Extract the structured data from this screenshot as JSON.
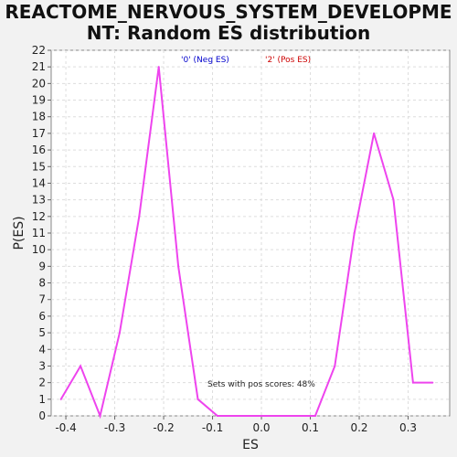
{
  "chart_data": {
    "type": "line",
    "title_lines": [
      "REACTOME_NERVOUS_SYSTEM_DEVELOPME",
      "NT: Random ES distribution"
    ],
    "xlabel": "ES",
    "ylabel": "P(ES)",
    "xlim": [
      -0.43,
      0.385
    ],
    "ylim": [
      0,
      22
    ],
    "xticks": [
      -0.4,
      -0.3,
      -0.2,
      -0.1,
      0.0,
      0.1,
      0.2,
      0.3
    ],
    "xtick_labels": [
      "-0.4",
      "-0.3",
      "-0.2",
      "-0.1",
      "0.0",
      "0.1",
      "0.2",
      "0.3"
    ],
    "yticks": [
      0,
      1,
      2,
      3,
      4,
      5,
      6,
      7,
      8,
      9,
      10,
      11,
      12,
      13,
      14,
      15,
      16,
      17,
      18,
      19,
      20,
      21,
      22
    ],
    "grid": true,
    "legend": {
      "placement": "top",
      "entries": [
        {
          "label": "'0' (Neg ES)",
          "color": "#0000cc"
        },
        {
          "label": "'2' (Pos ES)",
          "color": "#cc0000"
        }
      ]
    },
    "annotation": "Sets with pos scores: 48%",
    "series": [
      {
        "color": "#ee44ee",
        "x": [
          -0.41,
          -0.37,
          -0.33,
          -0.29,
          -0.25,
          -0.21,
          -0.17,
          -0.13,
          -0.09,
          -0.05,
          -0.01,
          0.03,
          0.07,
          0.11,
          0.15,
          0.19,
          0.23,
          0.27,
          0.31,
          0.35
        ],
        "y": [
          1,
          3,
          0,
          5,
          12,
          21,
          9,
          1,
          0,
          0,
          0,
          0,
          0,
          0,
          3,
          11,
          17,
          13,
          2,
          2
        ]
      }
    ]
  }
}
